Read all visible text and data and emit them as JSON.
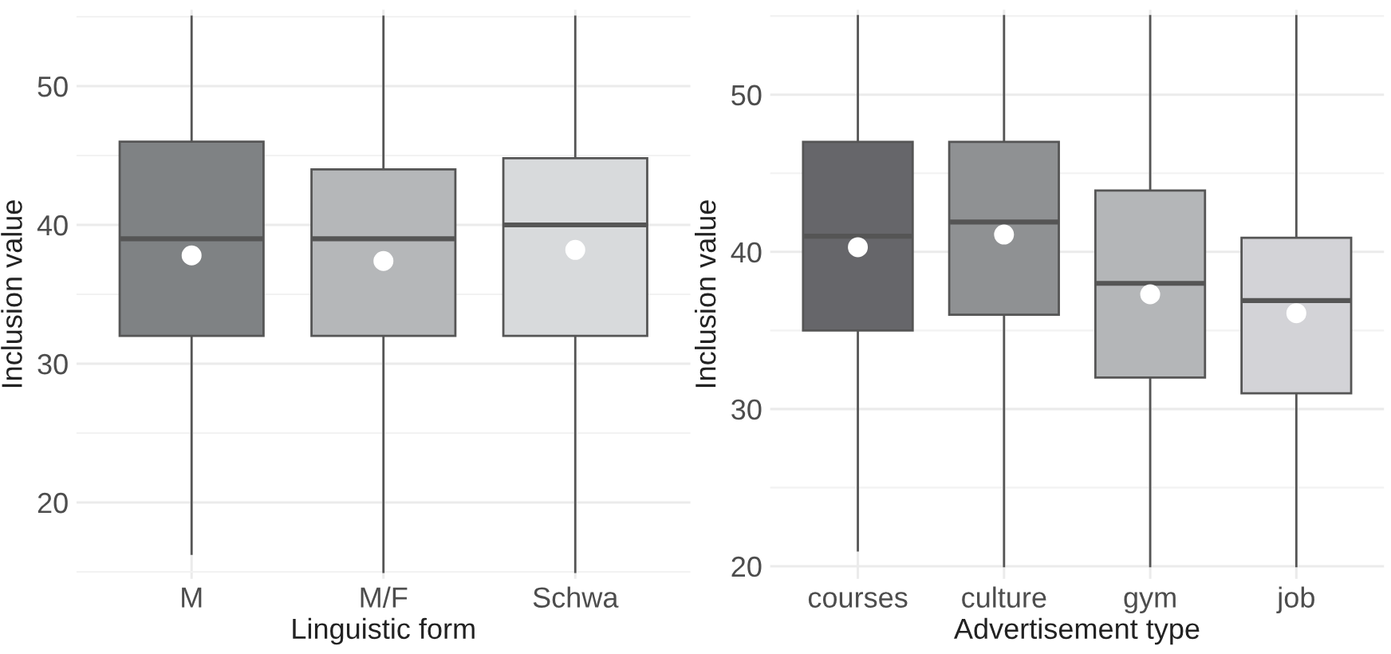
{
  "chart_data": [
    {
      "type": "box",
      "xlabel": "Linguistic form",
      "ylabel": "Inclusion value",
      "categories": [
        "M",
        "M/F",
        "Schwa"
      ],
      "colors": [
        "#7f8284",
        "#b5b7b9",
        "#d8dadc"
      ],
      "boxes": [
        {
          "low": 16.3,
          "q1": 32,
          "median": 39,
          "q3": 46,
          "high": 55,
          "mean": 37.8
        },
        {
          "low": 15,
          "q1": 32,
          "median": 39,
          "q3": 44,
          "high": 55,
          "mean": 37.4
        },
        {
          "low": 15,
          "q1": 32,
          "median": 40,
          "q3": 44.8,
          "high": 55,
          "mean": 38.2
        }
      ],
      "ylim": [
        14.5,
        55.5
      ],
      "yticks": [
        20,
        30,
        40,
        50
      ],
      "grid": true
    },
    {
      "type": "box",
      "xlabel": "Advertisement type",
      "ylabel": "Inclusion value",
      "categories": [
        "courses",
        "culture",
        "gym",
        "job"
      ],
      "colors": [
        "#66666a",
        "#8f9193",
        "#b4b6b8",
        "#d3d3d7"
      ],
      "boxes": [
        {
          "low": 21,
          "q1": 35,
          "median": 41,
          "q3": 47,
          "high": 55,
          "mean": 40.3
        },
        {
          "low": 20,
          "q1": 36,
          "median": 41.9,
          "q3": 47,
          "high": 55,
          "mean": 41.1
        },
        {
          "low": 20,
          "q1": 32,
          "median": 38,
          "q3": 43.9,
          "high": 55,
          "mean": 37.3
        },
        {
          "low": 20,
          "q1": 31,
          "median": 36.9,
          "q3": 40.9,
          "high": 55,
          "mean": 36.1
        }
      ],
      "ylim": [
        19.2,
        55.4
      ],
      "yticks": [
        20,
        30,
        40,
        50
      ],
      "grid": true
    }
  ]
}
